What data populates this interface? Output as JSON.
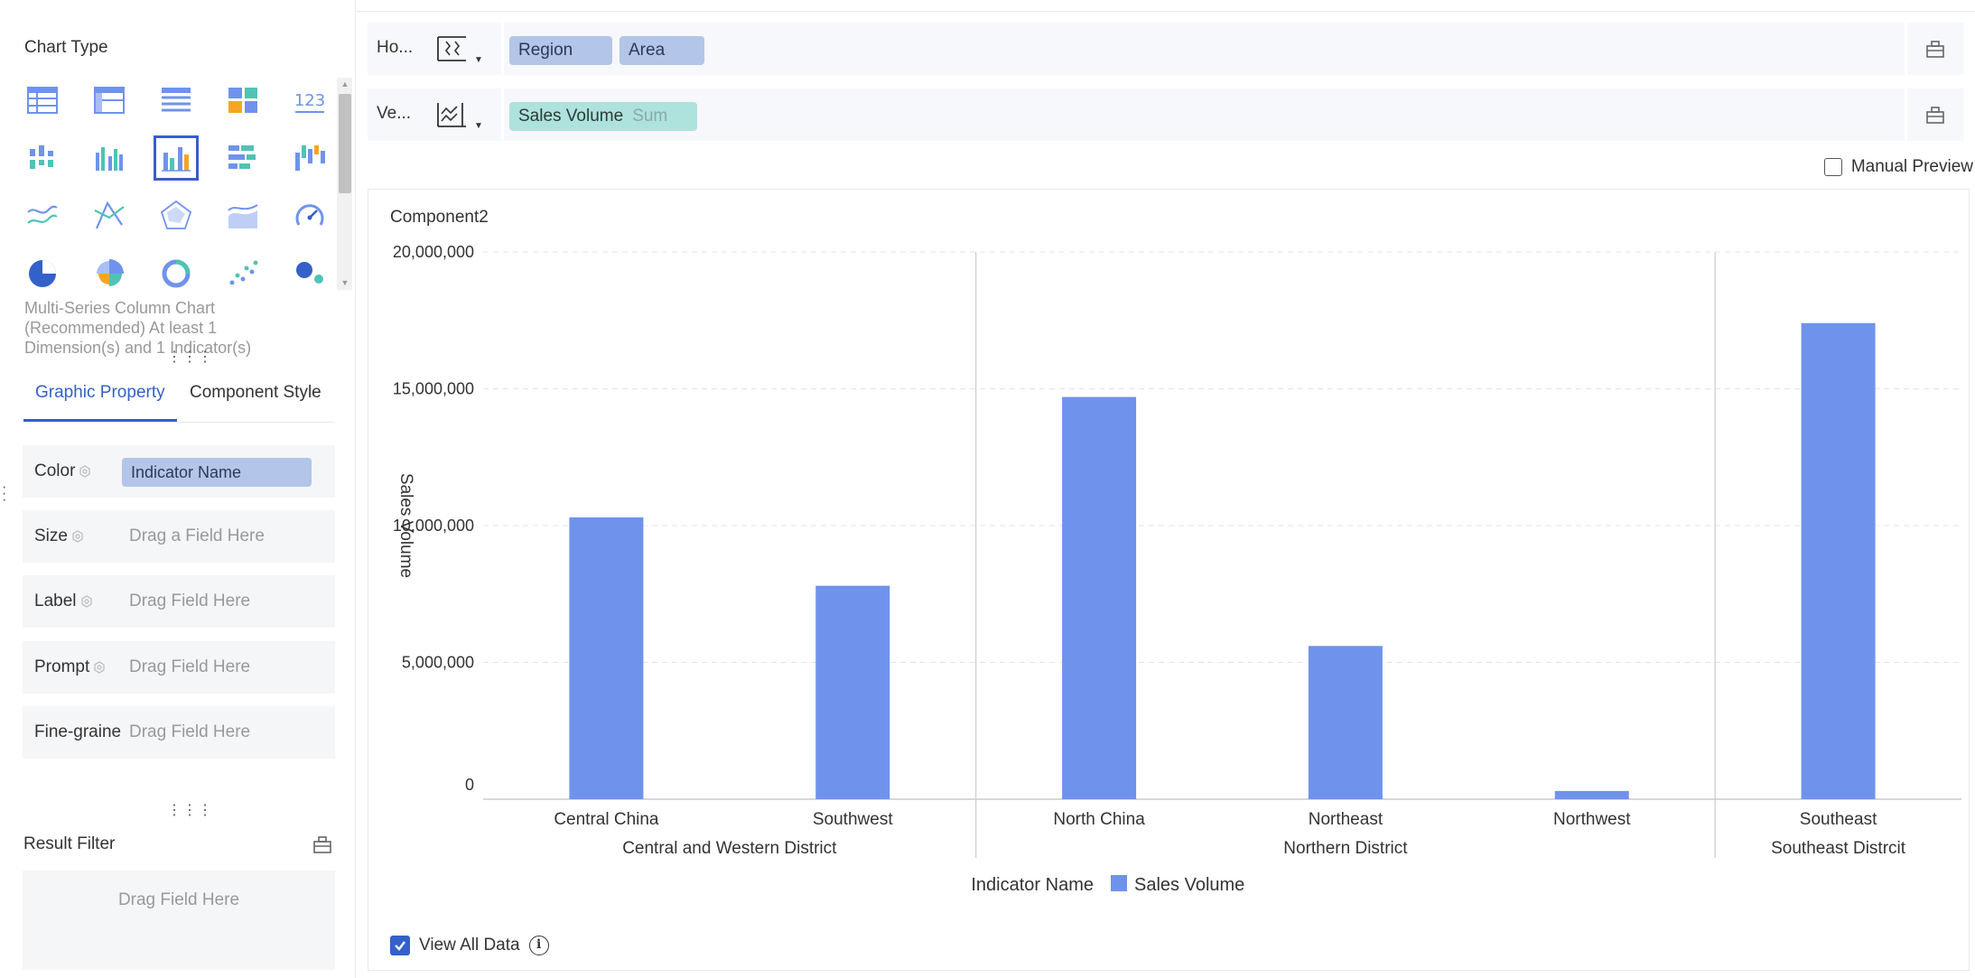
{
  "left_panel": {
    "chart_type_title": "Chart Type",
    "chart_types": [
      "table-icon",
      "cross-table-icon",
      "detail-table-icon",
      "tile-chart-icon",
      "kpi-number-icon",
      "grouped-bar-icon",
      "multi-column-icon",
      "multi-series-column-icon",
      "stacked-bar-icon",
      "waterfall-icon",
      "line-chart-icon",
      "radar-line-icon",
      "radar-area-icon",
      "area-chart-icon",
      "gauge-icon",
      "pie-chart-icon",
      "rose-chart-icon",
      "ring-chart-icon",
      "scatter-icon",
      "bubble-icon"
    ],
    "selected_chart_index": 7,
    "chart_description": "Multi-Series Column Chart (Recommended) At least 1 Dimension(s) and 1 Indicator(s)",
    "tabs": [
      {
        "label": "Graphic Property",
        "active": true
      },
      {
        "label": "Component Style",
        "active": false
      }
    ],
    "properties": [
      {
        "label": "Color",
        "value": "Indicator Name",
        "placeholder": ""
      },
      {
        "label": "Size",
        "value": "",
        "placeholder": "Drag a Field Here"
      },
      {
        "label": "Label",
        "value": "",
        "placeholder": "Drag Field Here"
      },
      {
        "label": "Prompt",
        "value": "",
        "placeholder": "Drag Field Here"
      },
      {
        "label": "Fine-graine",
        "value": "",
        "placeholder": "Drag Field Here"
      }
    ],
    "result_filter_title": "Result Filter",
    "result_filter_placeholder": "Drag Field Here"
  },
  "axes": {
    "horizontal": {
      "label": "Ho...",
      "fields": [
        {
          "name": "Region"
        },
        {
          "name": "Area"
        }
      ]
    },
    "vertical": {
      "label": "Ve...",
      "fields": [
        {
          "name": "Sales Volume",
          "agg": "Sum"
        }
      ]
    }
  },
  "manual_preview_label": "Manual Preview",
  "component_title": "Component2",
  "view_all_data_label": "View All Data",
  "colors": {
    "bar": "#6f93ec",
    "accent": "#3461c9"
  },
  "chart_data": {
    "type": "bar",
    "groups": [
      {
        "name": "Central and Western District",
        "categories": [
          "Central China",
          "Southwest"
        ]
      },
      {
        "name": "Northern District",
        "categories": [
          "North China",
          "Northeast",
          "Northwest"
        ]
      },
      {
        "name": "Southeast Distrcit",
        "categories": [
          "Southeast"
        ]
      }
    ],
    "categories": [
      "Central China",
      "Southwest",
      "North China",
      "Northeast",
      "Northwest",
      "Southeast"
    ],
    "series": [
      {
        "name": "Sales Volume",
        "values": [
          10300000,
          7800000,
          14700000,
          5600000,
          300000,
          17400000
        ]
      }
    ],
    "ylabel": "Sales Volume",
    "yticks": [
      "0",
      "5,000,000",
      "10,000,000",
      "15,000,000",
      "20,000,000"
    ],
    "ylim": [
      0,
      20000000
    ],
    "legend_title": "Indicator Name",
    "legend_position": "bottom",
    "grid": true
  }
}
